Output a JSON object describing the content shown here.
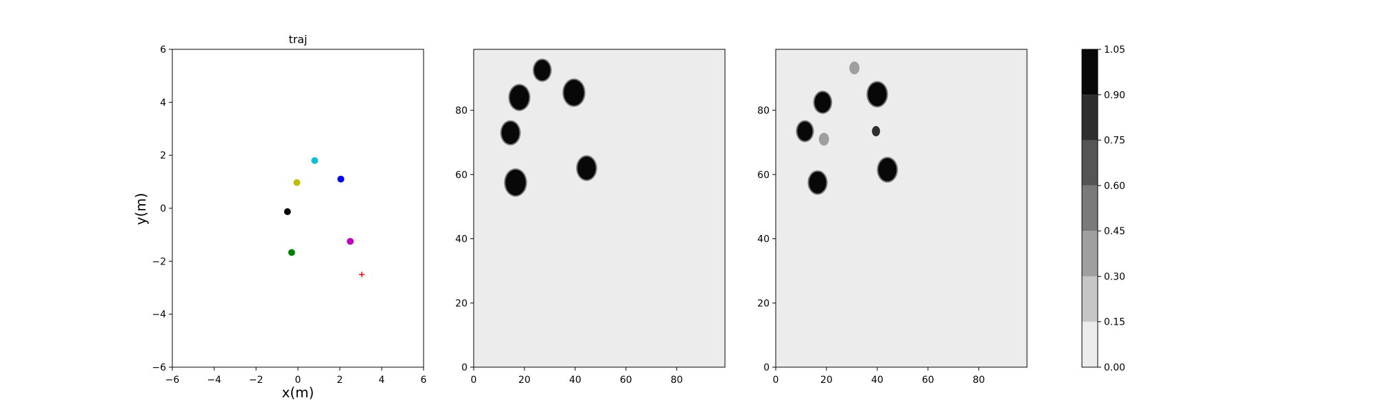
{
  "chart_data": [
    {
      "type": "scatter",
      "title": "traj",
      "xlabel": "x(m)",
      "ylabel": "y(m)",
      "xlim": [
        -6,
        6
      ],
      "ylim": [
        -6,
        6
      ],
      "xticks": [
        -6,
        -4,
        -2,
        0,
        2,
        4,
        6
      ],
      "yticks": [
        -6,
        -4,
        -2,
        0,
        2,
        4,
        6
      ],
      "grid": false,
      "points": [
        {
          "x": 0.8,
          "y": 1.8,
          "color": "#17becf",
          "marker": "circle"
        },
        {
          "x": 2.05,
          "y": 1.1,
          "color": "#0000ff",
          "marker": "circle"
        },
        {
          "x": -0.05,
          "y": 0.97,
          "color": "#bfbf00",
          "marker": "circle"
        },
        {
          "x": -0.5,
          "y": -0.13,
          "color": "#000000",
          "marker": "circle"
        },
        {
          "x": 2.5,
          "y": -1.25,
          "color": "#bf00bf",
          "marker": "circle"
        },
        {
          "x": -0.3,
          "y": -1.67,
          "color": "#008000",
          "marker": "circle"
        },
        {
          "x": 3.05,
          "y": -2.5,
          "color": "#ff0000",
          "marker": "plus"
        }
      ]
    },
    {
      "type": "heatmap",
      "title": "",
      "xlabel": "",
      "ylabel": "",
      "xlim": [
        0,
        99
      ],
      "ylim": [
        0,
        99
      ],
      "xticks": [
        0,
        20,
        40,
        60,
        80
      ],
      "yticks": [
        0,
        20,
        40,
        60,
        80
      ],
      "background_level": 0.05,
      "blobs": [
        {
          "x": 27,
          "y": 92.5,
          "r": 3.2,
          "level": 1.0
        },
        {
          "x": 18,
          "y": 84,
          "r": 3.8,
          "level": 1.0
        },
        {
          "x": 39.5,
          "y": 85.5,
          "r": 4.0,
          "level": 1.0
        },
        {
          "x": 14.5,
          "y": 73,
          "r": 3.5,
          "level": 1.0
        },
        {
          "x": 44.5,
          "y": 62,
          "r": 3.6,
          "level": 1.0
        },
        {
          "x": 16.5,
          "y": 57.5,
          "r": 4.0,
          "level": 1.0
        }
      ]
    },
    {
      "type": "heatmap",
      "title": "",
      "xlabel": "",
      "ylabel": "",
      "xlim": [
        0,
        99
      ],
      "ylim": [
        0,
        99
      ],
      "xticks": [
        0,
        20,
        40,
        60,
        80
      ],
      "yticks": [
        0,
        20,
        40,
        60,
        80
      ],
      "background_level": 0.05,
      "blobs": [
        {
          "x": 31,
          "y": 93.2,
          "r": 2.0,
          "level": 0.3
        },
        {
          "x": 18.5,
          "y": 82.5,
          "r": 3.2,
          "level": 1.0
        },
        {
          "x": 40,
          "y": 85,
          "r": 3.7,
          "level": 1.0
        },
        {
          "x": 11.5,
          "y": 73.5,
          "r": 3.0,
          "level": 1.0
        },
        {
          "x": 19,
          "y": 71,
          "r": 2.0,
          "level": 0.3
        },
        {
          "x": 39.5,
          "y": 73.5,
          "r": 1.6,
          "level": 0.75
        },
        {
          "x": 44,
          "y": 61.5,
          "r": 3.6,
          "level": 1.0
        },
        {
          "x": 16.5,
          "y": 57.5,
          "r": 3.4,
          "level": 1.0
        }
      ]
    },
    {
      "type": "colorbar",
      "levels": [
        0.0,
        0.15,
        0.3,
        0.45,
        0.6,
        0.75,
        0.9,
        1.05
      ],
      "tick_labels": [
        "0.00",
        "0.15",
        "0.30",
        "0.45",
        "0.60",
        "0.75",
        "0.90",
        "1.05"
      ],
      "colors": [
        "#ececec",
        "#c6c6c6",
        "#9f9f9f",
        "#7a7a7a",
        "#555555",
        "#2e2e2e",
        "#080808"
      ]
    }
  ]
}
